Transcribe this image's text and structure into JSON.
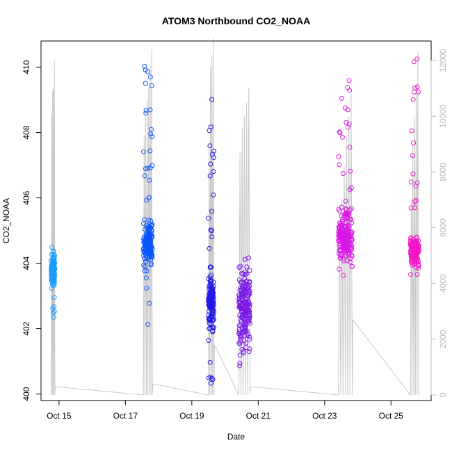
{
  "chart_data": {
    "type": "scatter",
    "title": "ATOM3 Northbound CO2_NOAA",
    "xlabel": "Date",
    "ylabel": "CO2_NOAA",
    "x_axis_type": "date",
    "x_range": [
      "2016-10-14T11:00",
      "2016-10-26T05:00"
    ],
    "x_ticks": [
      {
        "date": "2016-10-15",
        "label": "Oct 15"
      },
      {
        "date": "2016-10-17",
        "label": "Oct 17"
      },
      {
        "date": "2016-10-19",
        "label": "Oct 19"
      },
      {
        "date": "2016-10-21",
        "label": "Oct 21"
      },
      {
        "date": "2016-10-23",
        "label": "Oct 23"
      },
      {
        "date": "2016-10-25",
        "label": "Oct 25"
      }
    ],
    "ylim": [
      399.8,
      410.8
    ],
    "y_ticks": [
      400,
      402,
      404,
      406,
      408,
      410
    ],
    "y2lim": [
      -200,
      12700
    ],
    "y2_ticks": [
      0,
      2000,
      4000,
      6000,
      8000,
      10000,
      12000
    ],
    "y2_color": "#b8b8b8",
    "altitude_series_color": "#c8c8c8",
    "grid": false,
    "legend": "none",
    "flights": [
      {
        "day": "2016-10-14",
        "t_start": 18.4,
        "t_end": 21.0,
        "y_center": 403.8,
        "y_spread": 0.35,
        "y_min": 401.9,
        "y_max": 404.5,
        "n_points": 110,
        "color": "#1a9cff",
        "alt_peaks": [
          10100,
          10900,
          11000,
          12000
        ],
        "alt_end": 300
      },
      {
        "day": "2016-10-17",
        "t_start": 13.0,
        "t_end": 19.5,
        "y_center": 404.6,
        "y_spread": 0.5,
        "y_min": 401.8,
        "y_max": 410.2,
        "n_points": 170,
        "color": "#0a56ff",
        "alt_peaks": [
          9300,
          10000,
          10600,
          11000,
          11800,
          12400
        ],
        "alt_end": 400
      },
      {
        "day": "2016-10-19",
        "t_start": 12.0,
        "t_end": 16.0,
        "y_center": 402.8,
        "y_spread": 0.6,
        "y_min": 400.1,
        "y_max": 409.2,
        "n_points": 150,
        "color": "#2318e6",
        "alt_peaks": [
          8900,
          11800,
          12200,
          12800
        ],
        "alt_end": 1800
      },
      {
        "day": "2016-10-20",
        "t_start": 10.0,
        "t_end": 18.0,
        "y_center": 402.6,
        "y_spread": 0.9,
        "y_min": 400.8,
        "y_max": 404.6,
        "n_points": 200,
        "color": "#7a1ae6",
        "alt_peaks": [
          8700,
          9600,
          10000,
          10500,
          11000
        ],
        "alt_end": 300
      },
      {
        "day": "2016-10-23",
        "t_start": 10.0,
        "t_end": 20.0,
        "y_center": 404.8,
        "y_spread": 0.7,
        "y_min": 403.4,
        "y_max": 409.8,
        "n_points": 210,
        "color": "#d817e6",
        "alt_peaks": [
          6000,
          7000,
          8200,
          9300,
          10000,
          10800
        ],
        "alt_end": 2700
      },
      {
        "day": "2016-10-25",
        "t_start": 14.0,
        "t_end": 20.0,
        "y_center": 404.4,
        "y_spread": 0.35,
        "y_min": 403.5,
        "y_max": 410.3,
        "n_points": 180,
        "color": "#f217c8",
        "alt_peaks": [
          7000,
          9000,
          10000,
          11000,
          12300
        ],
        "alt_end": 0
      }
    ]
  }
}
